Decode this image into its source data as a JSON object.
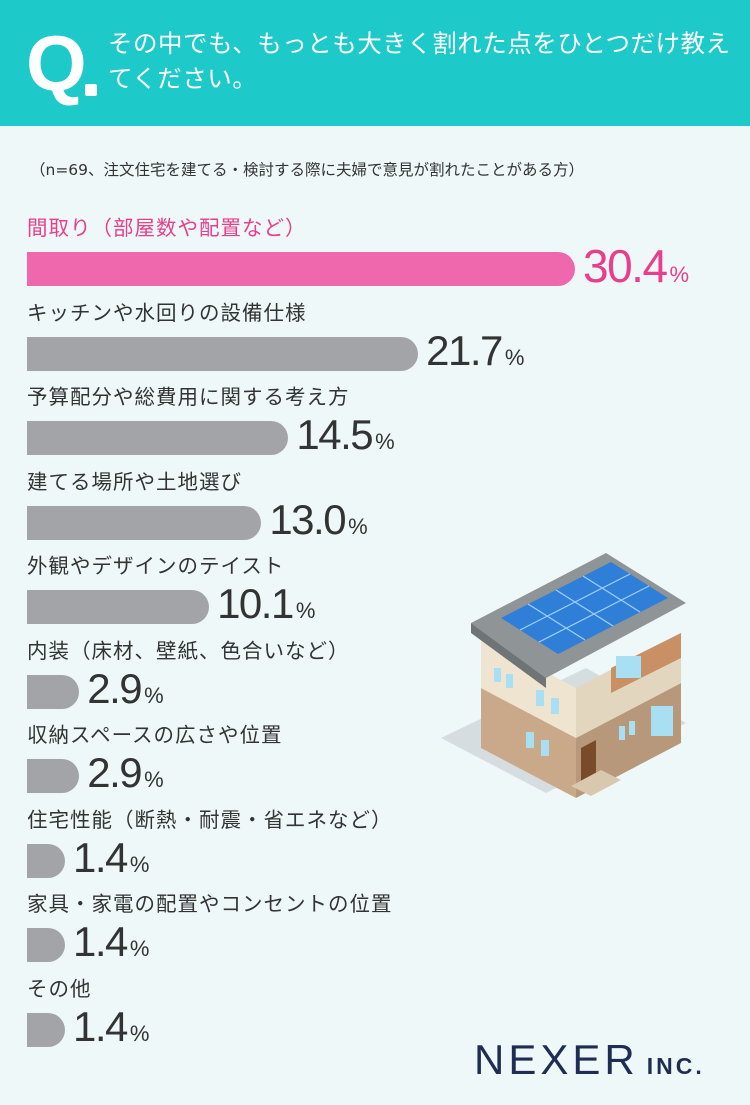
{
  "header": {
    "q_mark": "Q",
    "question": "その中でも、もっとも大きく割れた点をひとつだけ教えてください。"
  },
  "note": "（n=69、注文住宅を建てる・検討する際に夫婦で意見が割れたことがある方）",
  "chart_data": {
    "type": "bar",
    "orientation": "horizontal",
    "categories": [
      "間取り（部屋数や配置など）",
      "キッチンや水回りの設備仕様",
      "予算配分や総費用に関する考え方",
      "建てる場所や土地選び",
      "外観やデザインのテイスト",
      "内装（床材、壁紙、色合いなど）",
      "収納スペースの広さや位置",
      "住宅性能（断熱・耐震・省エネなど）",
      "家具・家電の配置やコンセントの位置",
      "その他"
    ],
    "values": [
      30.4,
      21.7,
      14.5,
      13.0,
      10.1,
      2.9,
      2.9,
      1.4,
      1.4,
      1.4
    ],
    "value_labels": [
      "30.4",
      "21.7",
      "14.5",
      "13.0",
      "10.1",
      "2.9",
      "2.9",
      "1.4",
      "1.4",
      "1.4"
    ],
    "unit": "%",
    "highlight_color": "#ef67ad",
    "bar_color": "#a3a4a8"
  },
  "logo": {
    "main": "NEXER",
    "sub": "INC."
  },
  "colors": {
    "header_bg": "#1ecac9",
    "page_bg": "#eef8f9",
    "highlight_text": "#e83e8c"
  }
}
